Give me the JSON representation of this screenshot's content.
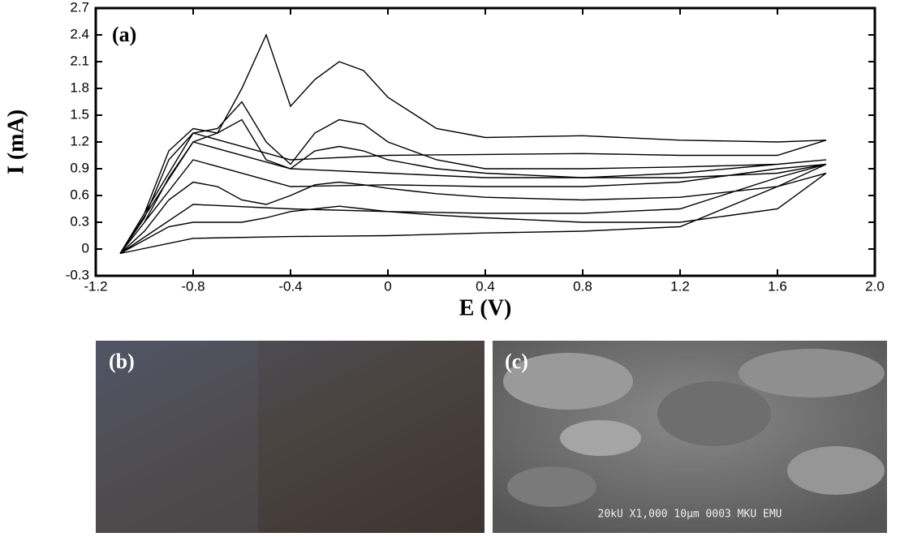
{
  "chart_data": {
    "type": "line",
    "panel_label": "(a)",
    "x_label": "E (V)",
    "y_label": "I (mA)",
    "x": [
      -1.1,
      -1.0,
      -0.9,
      -0.8,
      -0.7,
      -0.6,
      -0.5,
      -0.4,
      -0.3,
      -0.2,
      -0.1,
      0,
      0.2,
      0.4,
      0.8,
      1.2,
      1.6,
      1.8,
      1.6,
      1.2,
      0.8,
      0.4,
      0,
      -0.4,
      -0.8,
      -1.1
    ],
    "series": [
      {
        "color": "#000000",
        "values": [
          -0.05,
          0.4,
          1.1,
          1.35,
          1.3,
          1.8,
          2.4,
          1.6,
          1.9,
          2.1,
          2.0,
          1.7,
          1.35,
          1.25,
          1.27,
          1.22,
          1.2,
          1.22,
          1.05,
          1.05,
          1.07,
          1.06,
          1.05,
          1.0,
          1.3,
          -0.05
        ]
      },
      {
        "color": "#000000",
        "values": [
          -0.05,
          0.35,
          1.0,
          1.3,
          1.35,
          1.65,
          1.2,
          0.95,
          1.3,
          1.45,
          1.4,
          1.2,
          1.0,
          0.9,
          0.9,
          0.92,
          0.95,
          1.0,
          0.95,
          0.85,
          0.8,
          0.8,
          0.85,
          0.9,
          1.2,
          -0.05
        ]
      },
      {
        "color": "#000000",
        "values": [
          -0.05,
          0.3,
          0.8,
          1.2,
          1.3,
          1.45,
          1.0,
          0.9,
          1.1,
          1.15,
          1.1,
          1.0,
          0.9,
          0.85,
          0.8,
          0.8,
          0.85,
          0.95,
          0.9,
          0.75,
          0.7,
          0.7,
          0.72,
          0.7,
          1.0,
          -0.05
        ]
      },
      {
        "color": "#000000",
        "values": [
          -0.05,
          0.2,
          0.55,
          0.75,
          0.7,
          0.55,
          0.5,
          0.6,
          0.72,
          0.75,
          0.72,
          0.68,
          0.62,
          0.58,
          0.55,
          0.58,
          0.7,
          0.95,
          0.8,
          0.45,
          0.4,
          0.4,
          0.42,
          0.45,
          0.5,
          -0.05
        ]
      },
      {
        "color": "#000000",
        "values": [
          -0.05,
          0.1,
          0.25,
          0.3,
          0.3,
          0.3,
          0.35,
          0.42,
          0.45,
          0.48,
          0.45,
          0.42,
          0.38,
          0.35,
          0.3,
          0.3,
          0.45,
          0.85,
          0.7,
          0.25,
          0.2,
          0.18,
          0.15,
          0.14,
          0.12,
          -0.05
        ]
      }
    ],
    "xlim": [
      -1.2,
      2.0
    ],
    "xticks": [
      -1.2,
      -0.8,
      -0.4,
      0,
      0.4,
      0.8,
      1.2,
      1.6,
      {
        "value": 2.0,
        "label": "2.0"
      }
    ],
    "ylim": [
      -0.3,
      2.7
    ],
    "yticks": [
      -0.3,
      0,
      0.3,
      0.6,
      0.9,
      1.2,
      1.5,
      1.8,
      2.1,
      2.4,
      2.7
    ]
  },
  "panels": {
    "b": {
      "label": "(b)"
    },
    "c": {
      "label": "(c)",
      "caption": "20kU X1,000 10μm 0003 MKU EMU"
    }
  }
}
